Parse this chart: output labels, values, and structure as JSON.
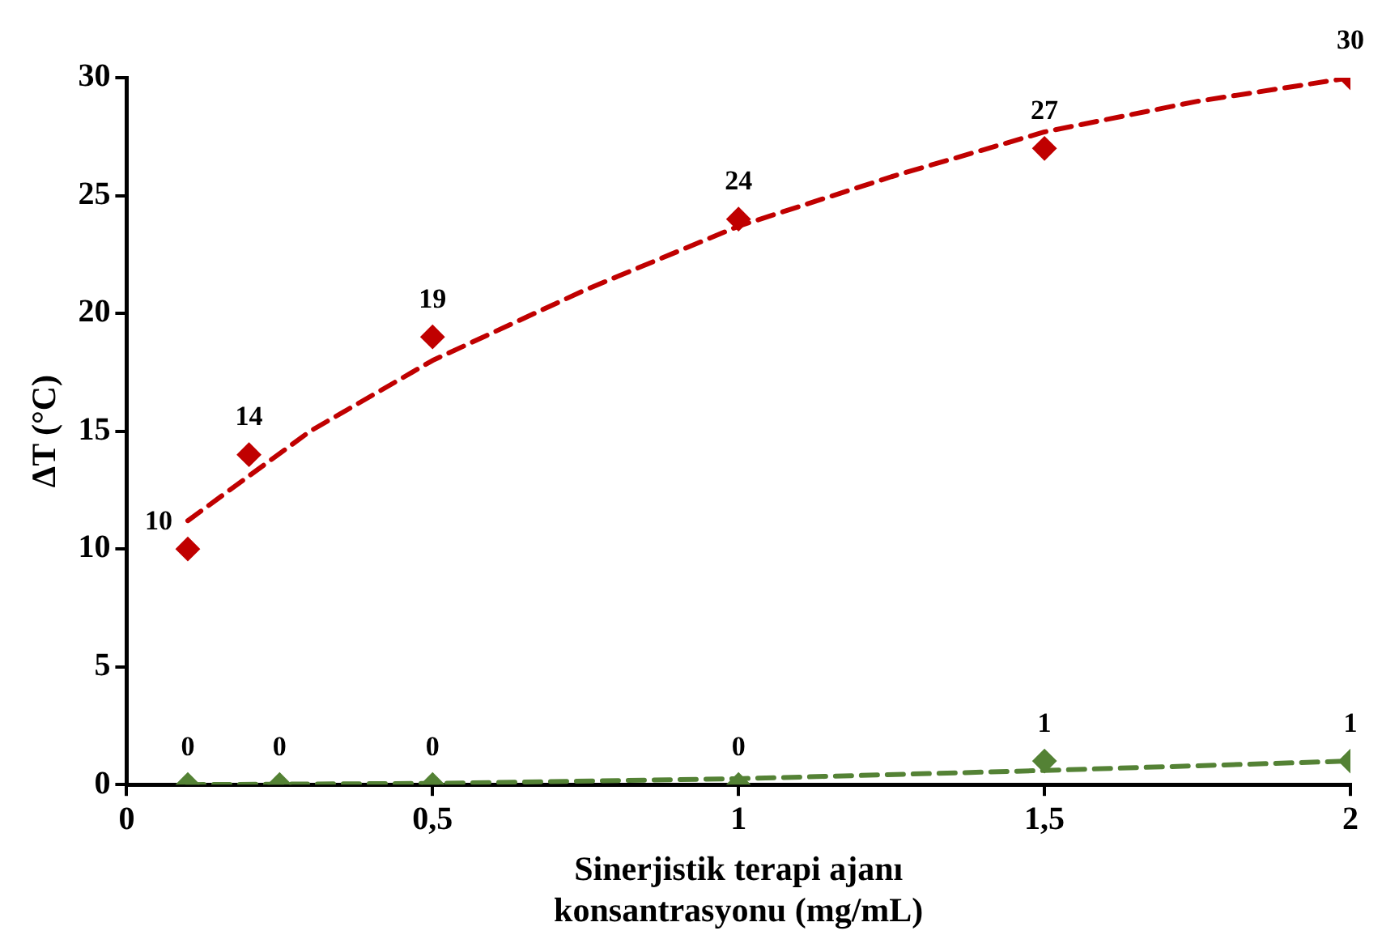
{
  "chart_data": {
    "type": "scatter",
    "xlabel": "Sinerjistik terapi ajanı konsantrasyonu (mg/mL)",
    "ylabel": "ΔT (°C)",
    "xlim": [
      0,
      2
    ],
    "xticks": [
      0,
      {
        "value": 0.5,
        "label": "0,5"
      },
      1,
      {
        "value": 1.5,
        "label": "1,5"
      },
      2
    ],
    "ylim": [
      0,
      30
    ],
    "yticks": [
      0,
      5,
      10,
      15,
      20,
      25,
      30
    ],
    "grid": false,
    "legend": false,
    "marker": "diamond",
    "series": [
      {
        "type": "scatter",
        "color": "#c00000",
        "x": [
          0.1,
          0.2,
          0.5,
          1,
          1.5,
          2
        ],
        "values": [
          10,
          14,
          19,
          24,
          27,
          30
        ],
        "value_labels": [
          "10",
          "14",
          "19",
          "24",
          "27",
          "30"
        ]
      },
      {
        "type": "scatter",
        "color": "#548235",
        "x": [
          0.1,
          0.25,
          0.5,
          1,
          1.5,
          2
        ],
        "values": [
          0,
          0,
          0,
          0,
          1,
          1
        ],
        "value_labels": [
          "0",
          "0",
          "0",
          "0",
          "1",
          "1"
        ]
      },
      {
        "type": "line",
        "color": "#c00000",
        "line_style": "dashed",
        "marker": "none",
        "x": [
          0.1,
          0.3,
          0.5,
          0.75,
          1,
          1.25,
          1.5,
          1.75,
          2
        ],
        "values": [
          11.2,
          15,
          18,
          21,
          23.7,
          25.8,
          27.7,
          29,
          30
        ]
      },
      {
        "type": "line",
        "color": "#548235",
        "line_style": "dashed",
        "marker": "none",
        "x": [
          0.1,
          0.5,
          1,
          1.5,
          2
        ],
        "values": [
          0,
          0.05,
          0.25,
          0.6,
          1
        ]
      }
    ]
  }
}
